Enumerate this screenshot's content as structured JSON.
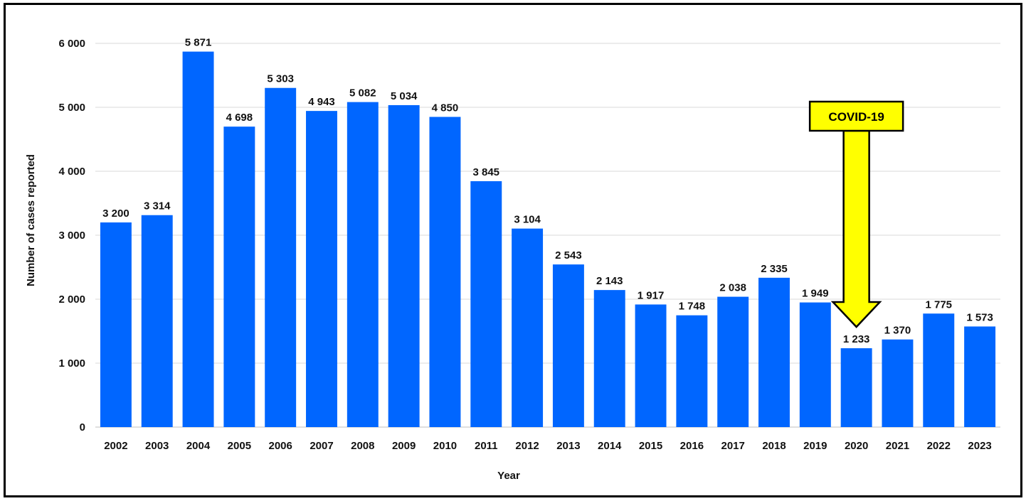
{
  "chart_data": {
    "type": "bar",
    "title": "",
    "xlabel": "Year",
    "ylabel": "Number of cases reported",
    "ylim": [
      0,
      6000
    ],
    "yticks": [
      0,
      1000,
      2000,
      3000,
      4000,
      5000,
      6000
    ],
    "ytick_labels": [
      "0",
      "1 000",
      "2 000",
      "3 000",
      "4 000",
      "5 000",
      "6 000"
    ],
    "grid": "horizontal",
    "bar_color": "#0066ff",
    "categories": [
      "2002",
      "2003",
      "2004",
      "2005",
      "2006",
      "2007",
      "2008",
      "2009",
      "2010",
      "2011",
      "2012",
      "2013",
      "2014",
      "2015",
      "2016",
      "2017",
      "2018",
      "2019",
      "2020",
      "2021",
      "2022",
      "2023"
    ],
    "values": [
      3200,
      3314,
      5871,
      4698,
      5303,
      4943,
      5082,
      5034,
      4850,
      3845,
      3104,
      2543,
      2143,
      1917,
      1748,
      2038,
      2335,
      1949,
      1233,
      1370,
      1775,
      1573
    ],
    "value_labels": [
      "3 200",
      "3 314",
      "5 871",
      "4 698",
      "5 303",
      "4 943",
      "5 082",
      "5 034",
      "4 850",
      "3 845",
      "3 104",
      "2 543",
      "2 143",
      "1 917",
      "1 748",
      "2 038",
      "2 335",
      "1 949",
      "1 233",
      "1 370",
      "1 775",
      "1 573"
    ],
    "annotation": {
      "text": "COVID-19",
      "points_to": "2020",
      "fill_color": "#ffff00",
      "stroke_color": "#000000"
    }
  }
}
